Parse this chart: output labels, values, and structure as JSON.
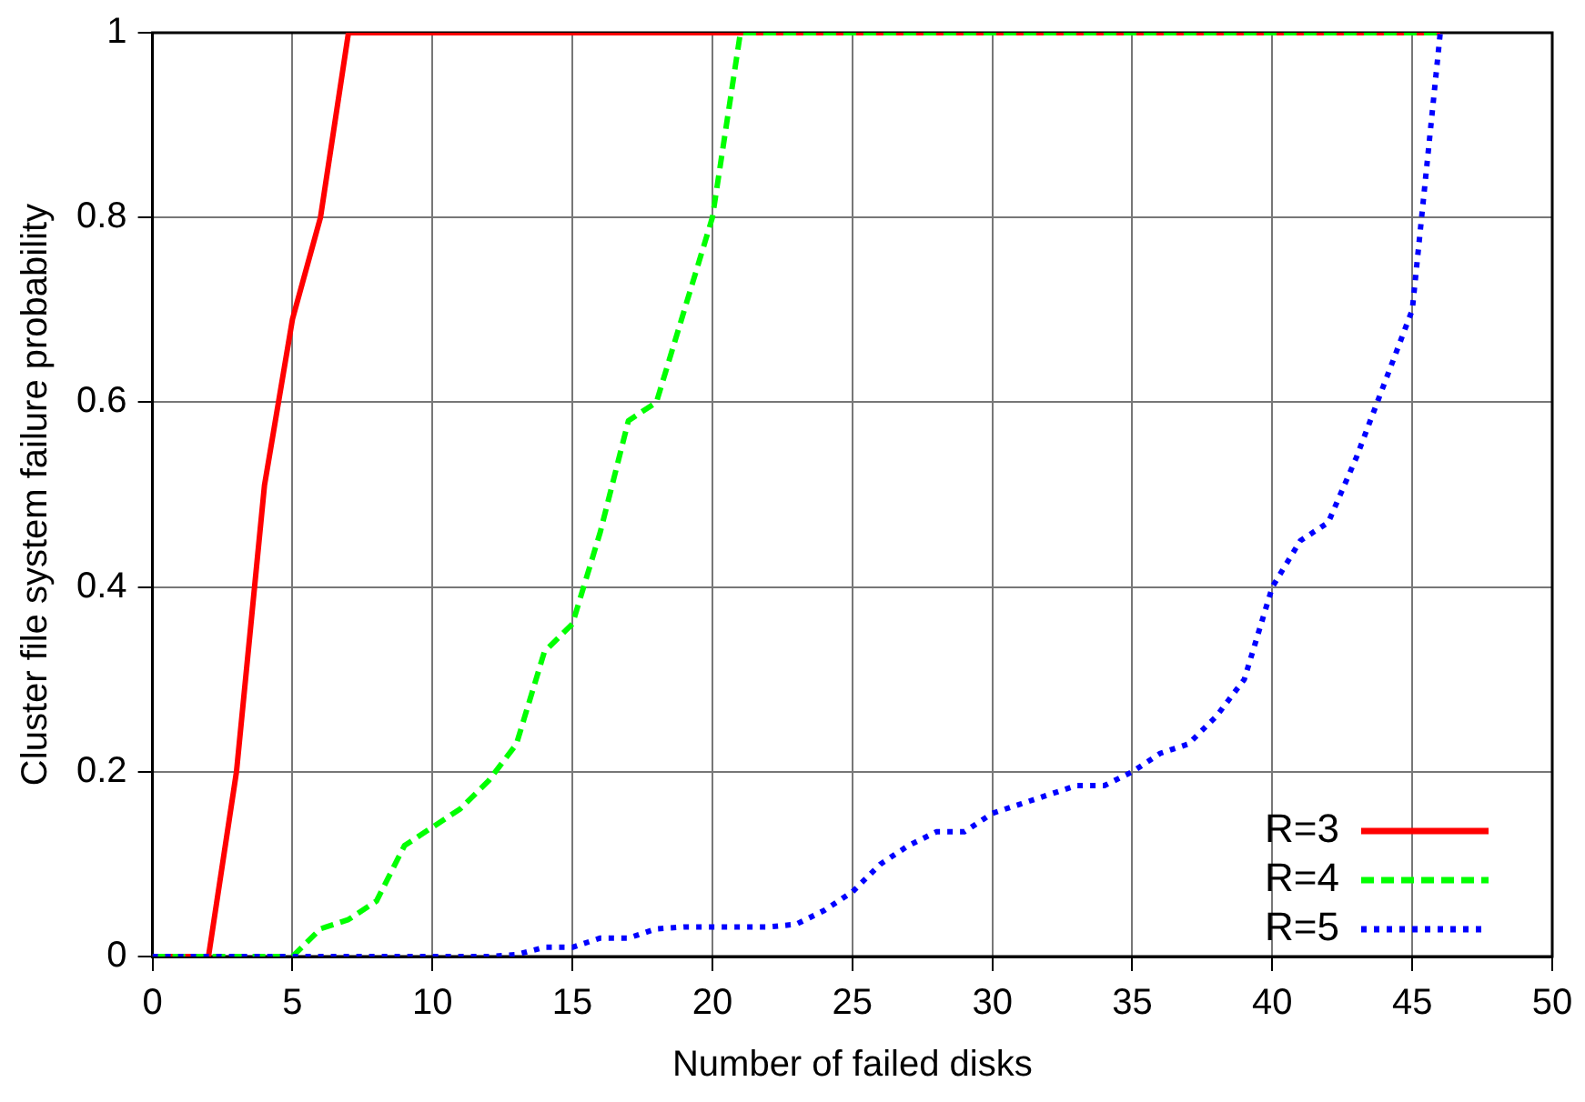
{
  "chart_data": {
    "type": "line",
    "xlabel": "Number of failed disks",
    "ylabel": "Cluster file system failure probability",
    "x": [
      0,
      1,
      2,
      3,
      4,
      5,
      6,
      7,
      8,
      9,
      10,
      11,
      12,
      13,
      14,
      15,
      16,
      17,
      18,
      19,
      20,
      21,
      22,
      23,
      24,
      25,
      26,
      27,
      28,
      29,
      30,
      31,
      32,
      33,
      34,
      35,
      36,
      37,
      38,
      39,
      40,
      41,
      42,
      43,
      44,
      45,
      46
    ],
    "series": [
      {
        "name": "R=3",
        "color": "#ff0000",
        "line_style": "solid",
        "values": [
          0,
          0,
          0,
          0.2,
          0.51,
          0.69,
          0.8,
          1,
          1,
          1,
          1,
          1,
          1,
          1,
          1,
          1,
          1,
          1,
          1,
          1,
          1,
          1,
          1,
          1,
          1,
          1,
          1,
          1,
          1,
          1,
          1,
          1,
          1,
          1,
          1,
          1,
          1,
          1,
          1,
          1,
          1,
          1,
          1,
          1,
          1,
          1,
          1
        ]
      },
      {
        "name": "R=4",
        "color": "#00ff00",
        "line_style": "dashed",
        "values": [
          0,
          0,
          0,
          0,
          0,
          0,
          0.03,
          0.04,
          0.06,
          0.12,
          0.14,
          0.16,
          0.19,
          0.23,
          0.33,
          0.36,
          0.46,
          0.58,
          0.6,
          0.7,
          0.8,
          1,
          1,
          1,
          1,
          1,
          1,
          1,
          1,
          1,
          1,
          1,
          1,
          1,
          1,
          1,
          1,
          1,
          1,
          1,
          1,
          1,
          1,
          1,
          1,
          1,
          1
        ]
      },
      {
        "name": "R=5",
        "color": "#0000ff",
        "line_style": "dotted",
        "values": [
          0,
          0,
          0,
          0,
          0,
          0,
          0,
          0,
          0,
          0,
          0,
          0,
          0,
          0.002,
          0.01,
          0.01,
          0.02,
          0.02,
          0.03,
          0.032,
          0.032,
          0.032,
          0.032,
          0.035,
          0.05,
          0.07,
          0.1,
          0.12,
          0.135,
          0.135,
          0.155,
          0.165,
          0.175,
          0.185,
          0.185,
          0.2,
          0.22,
          0.23,
          0.26,
          0.3,
          0.4,
          0.45,
          0.47,
          0.54,
          0.62,
          0.7,
          1
        ]
      }
    ],
    "xlim": [
      0,
      50
    ],
    "xticks": [
      0,
      5,
      10,
      15,
      20,
      25,
      30,
      35,
      40,
      45,
      50
    ],
    "ylim": [
      0,
      1
    ],
    "yticks": [
      0,
      0.2,
      0.4,
      0.6,
      0.8,
      1
    ],
    "grid": true,
    "legend": "bottom right",
    "marker": "none"
  }
}
